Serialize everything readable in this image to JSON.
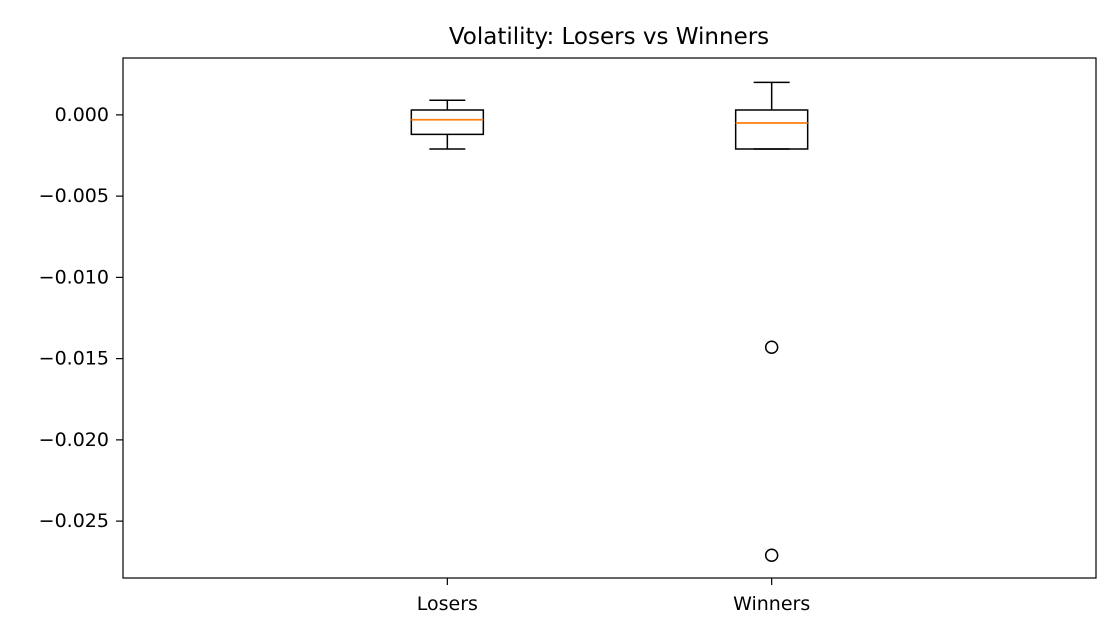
{
  "chart_data": {
    "type": "box",
    "title": "Volatility: Losers vs Winners",
    "xlabel": "",
    "ylabel": "",
    "categories": [
      "Losers",
      "Winners"
    ],
    "ylim": [
      -0.0285,
      0.0035
    ],
    "yticks": [
      0.0,
      -0.005,
      -0.01,
      -0.015,
      -0.02,
      -0.025
    ],
    "ytick_labels": [
      "0.000",
      "−0.005",
      "−0.010",
      "−0.015",
      "−0.020",
      "−0.025"
    ],
    "grid": false,
    "boxes": [
      {
        "name": "Losers",
        "whisker_low": -0.0021,
        "q1": -0.0012,
        "median": -0.0003,
        "q3": 0.0003,
        "whisker_high": 0.0009,
        "outliers": []
      },
      {
        "name": "Winners",
        "whisker_low": -0.0021,
        "q1": -0.0021,
        "median": -0.0005,
        "q3": 0.0003,
        "whisker_high": 0.002,
        "outliers": [
          -0.0143,
          -0.0271
        ]
      }
    ],
    "colors": {
      "box": "#000000",
      "median": "#ff7f0e",
      "outlier": "#000000"
    }
  }
}
